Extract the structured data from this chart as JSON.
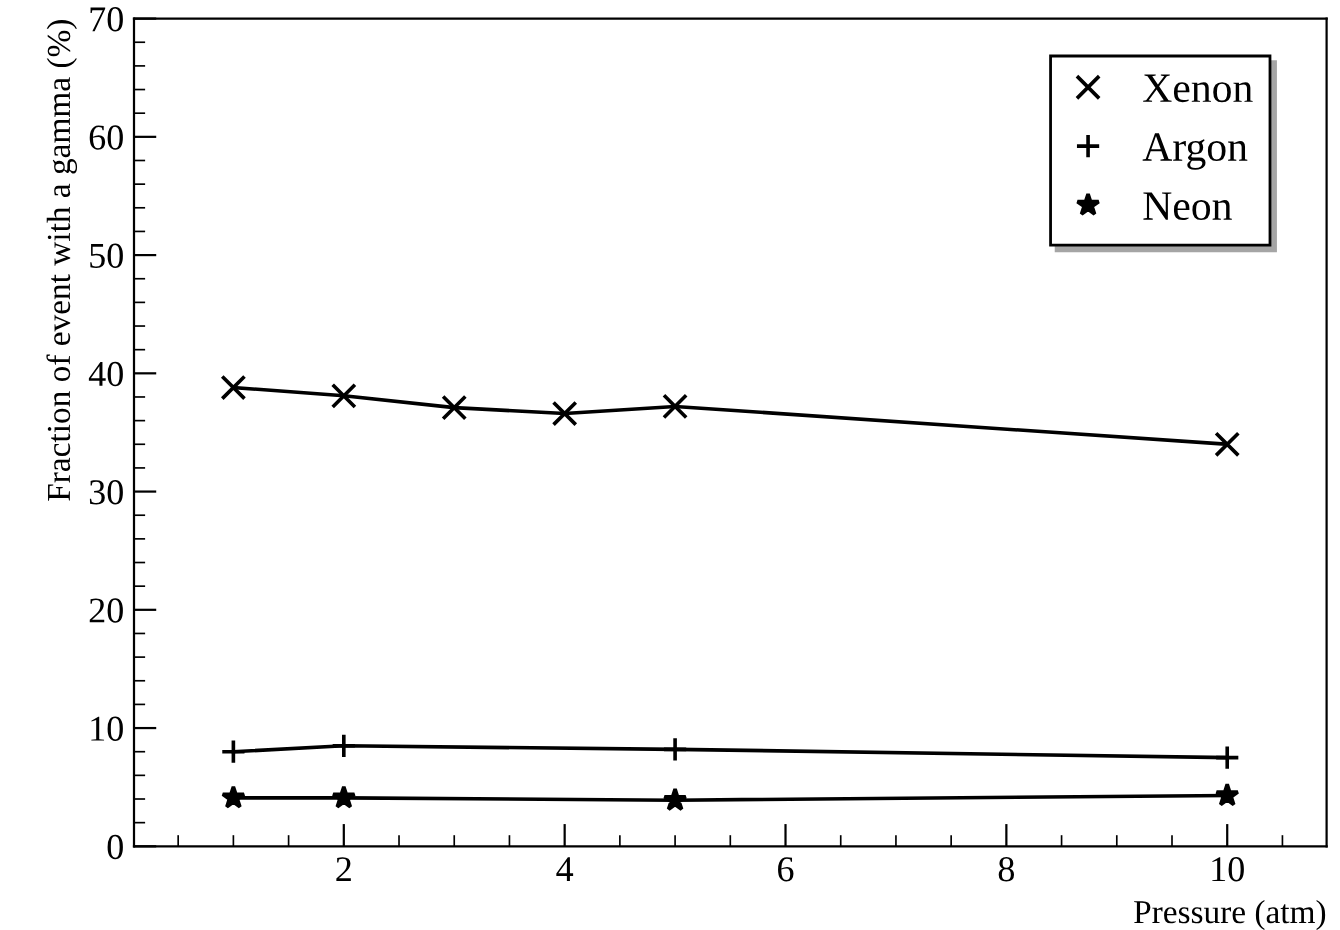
{
  "chart_data": {
    "type": "line",
    "xlabel": "Pressure (atm)",
    "ylabel": "Fraction of event with a gamma (%)",
    "xlim": [
      0.1,
      10.9
    ],
    "xticks": [
      2,
      4,
      6,
      8,
      10
    ],
    "ylim": [
      0,
      70
    ],
    "yticks": [
      0,
      10,
      20,
      30,
      40,
      50,
      60,
      70
    ],
    "legend": "top right",
    "grid": false,
    "series": [
      {
        "name": "Xenon",
        "color": "#000000",
        "marker": "cross",
        "x": [
          1,
          2,
          3,
          4,
          5,
          10
        ],
        "values": [
          38.8,
          38.1,
          37.1,
          36.6,
          37.2,
          34.0
        ]
      },
      {
        "name": "Argon",
        "color": "#000000",
        "marker": "plus",
        "x": [
          1,
          2,
          5,
          10
        ],
        "values": [
          8.0,
          8.5,
          8.2,
          7.5
        ]
      },
      {
        "name": "Neon",
        "color": "#000000",
        "marker": "star",
        "x": [
          1,
          2,
          5,
          10
        ],
        "values": [
          4.1,
          4.1,
          3.9,
          4.3
        ]
      }
    ]
  }
}
